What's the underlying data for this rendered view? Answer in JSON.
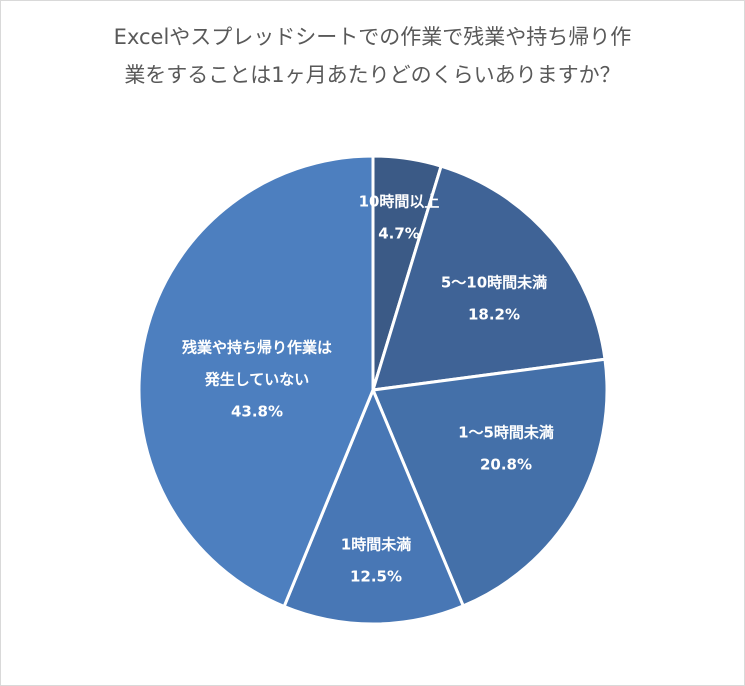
{
  "chart_data": {
    "type": "pie",
    "title_lines": [
      "Excelやスプレッドシートでの作業で残業や持ち帰り作",
      "業をすることは1ヶ月あたりどのくらいありますか？"
    ],
    "slices": [
      {
        "label_lines": [
          "10時間以上"
        ],
        "value": 4.7,
        "value_label": "4.7%",
        "color": "#3b5a86"
      },
      {
        "label_lines": [
          "5〜10時間未満"
        ],
        "value": 18.2,
        "value_label": "18.2%",
        "color": "#3f6396"
      },
      {
        "label_lines": [
          "1〜5時間未満"
        ],
        "value": 20.8,
        "value_label": "20.8%",
        "color": "#4470a9"
      },
      {
        "label_lines": [
          "1時間未満"
        ],
        "value": 12.5,
        "value_label": "12.5%",
        "color": "#4877b5"
      },
      {
        "label_lines": [
          "残業や持ち帰り作業は",
          "発生していない"
        ],
        "value": 43.8,
        "value_label": "43.8%",
        "color": "#4d7fbf"
      }
    ],
    "start": "12 o'clock",
    "direction": "clockwise",
    "legend": "none"
  }
}
